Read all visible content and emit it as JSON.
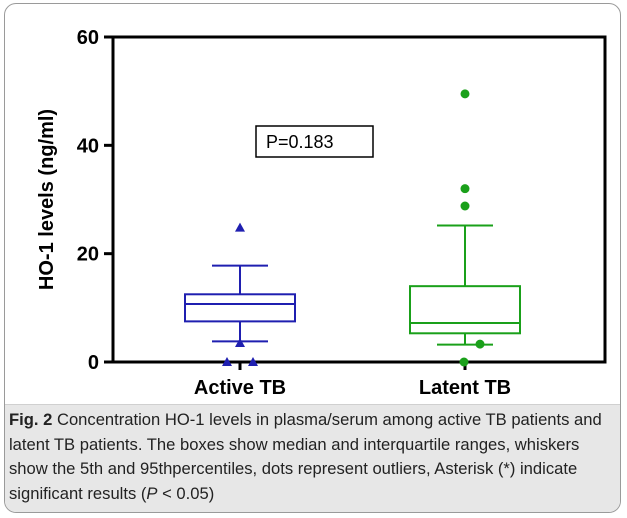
{
  "chart_data": {
    "type": "box",
    "ylabel": "HO-1 levels (ng/ml)",
    "ylim": [
      0,
      60
    ],
    "yticks": [
      "0",
      "20",
      "40",
      "60"
    ],
    "categories": [
      "Active TB",
      "Latent TB"
    ],
    "boxes": [
      {
        "name": "Active TB",
        "color": "#1f1fb0",
        "marker": "triangle",
        "whisker_low": 3.8,
        "q1": 7.5,
        "median": 10.7,
        "q3": 12.5,
        "whisker_high": 17.8,
        "outliers": [
          24.8,
          3.5,
          0,
          0
        ]
      },
      {
        "name": "Latent TB",
        "color": "#1aa01a",
        "marker": "circle",
        "whisker_low": 3.2,
        "q1": 5.3,
        "median": 7.2,
        "q3": 14,
        "whisker_high": 25.2,
        "outliers": [
          49.5,
          32,
          28.8,
          3.3,
          0
        ]
      }
    ],
    "annotations": [
      {
        "text": "P=0.183"
      }
    ]
  },
  "caption": {
    "label": "Fig. 2",
    "text_1": " Concentration HO-1 levels in plasma/serum among active TB patients and latent TB patients. The boxes show median and interquartile ranges, whiskers show the 5th and 95thpercentiles, dots represent outliers, Asterisk (*) indicate significant results (",
    "p_symbol": "P",
    "text_2": " < 0.05)"
  }
}
